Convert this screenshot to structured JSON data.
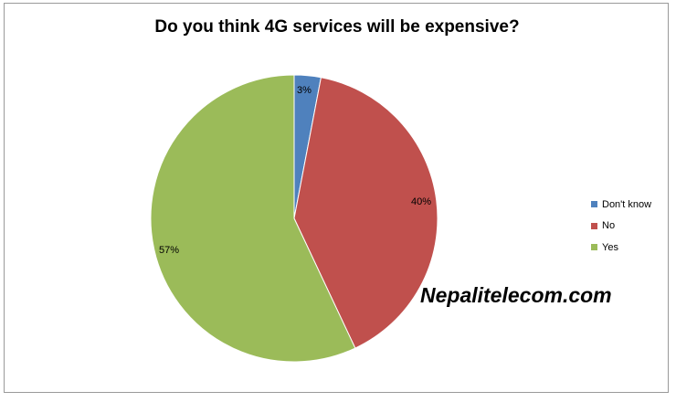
{
  "chart_data": {
    "type": "pie",
    "title": "Do you think 4G services will be expensive?",
    "series": [
      {
        "name": "Don't know",
        "value": 3,
        "label": "3%",
        "color": "#4f81bd"
      },
      {
        "name": "No",
        "value": 40,
        "label": "40%",
        "color": "#c0504d"
      },
      {
        "name": "Yes",
        "value": 57,
        "label": "57%",
        "color": "#9bbb59"
      }
    ],
    "legend_position": "right"
  },
  "watermark": "Nepalitelecom.com"
}
